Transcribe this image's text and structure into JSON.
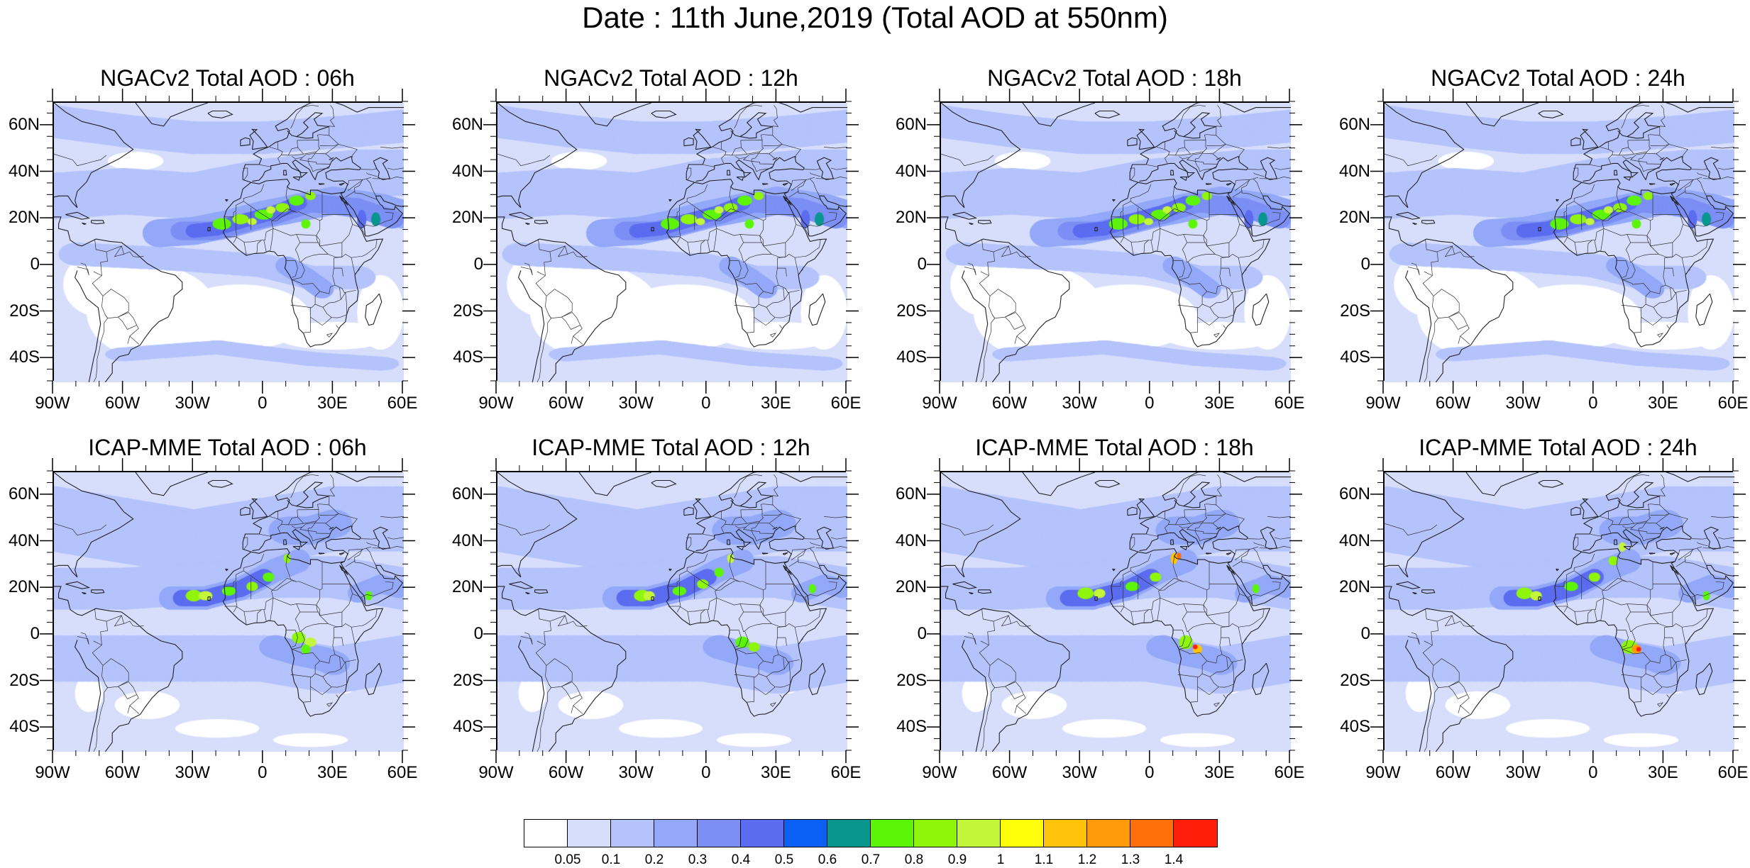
{
  "title": "Date : 11th June,2019 (Total AOD at 550nm)",
  "lat_ticks": [
    "60N",
    "40N",
    "20N",
    "0",
    "20S",
    "40S"
  ],
  "lat_values": [
    60,
    40,
    20,
    0,
    -20,
    -40
  ],
  "lon_ticks": [
    "90W",
    "60W",
    "30W",
    "0",
    "30E",
    "60E"
  ],
  "lon_values": [
    -90,
    -60,
    -30,
    0,
    30,
    60
  ],
  "lat_range": [
    -50,
    70
  ],
  "lon_range": [
    -90,
    60
  ],
  "panels": [
    {
      "title": "NGACv2 Total AOD : 06h",
      "model": "NGACv2",
      "hour": "06h"
    },
    {
      "title": "NGACv2 Total AOD : 12h",
      "model": "NGACv2",
      "hour": "12h"
    },
    {
      "title": "NGACv2 Total AOD : 18h",
      "model": "NGACv2",
      "hour": "18h"
    },
    {
      "title": "NGACv2 Total AOD : 24h",
      "model": "NGACv2",
      "hour": "24h"
    },
    {
      "title": "ICAP-MME Total AOD : 06h",
      "model": "ICAP-MME",
      "hour": "06h"
    },
    {
      "title": "ICAP-MME Total AOD : 12h",
      "model": "ICAP-MME",
      "hour": "12h"
    },
    {
      "title": "ICAP-MME Total AOD : 18h",
      "model": "ICAP-MME",
      "hour": "18h"
    },
    {
      "title": "ICAP-MME Total AOD : 24h",
      "model": "ICAP-MME",
      "hour": "24h"
    }
  ],
  "colorbar": {
    "labels": [
      "0.05",
      "0.1",
      "0.2",
      "0.3",
      "0.4",
      "0.5",
      "0.6",
      "0.7",
      "0.8",
      "0.9",
      "1",
      "1.1",
      "1.2",
      "1.3",
      "1.4"
    ],
    "colors": [
      "#ffffff",
      "#d7defc",
      "#b4c3fb",
      "#93a8f8",
      "#7b8ff5",
      "#5b6cf0",
      "#0a5ff5",
      "#08968f",
      "#5cf50a",
      "#8ff50a",
      "#c3f538",
      "#ffff0a",
      "#ffc40a",
      "#ff9b0a",
      "#ff700a",
      "#ff1e0a"
    ]
  }
}
